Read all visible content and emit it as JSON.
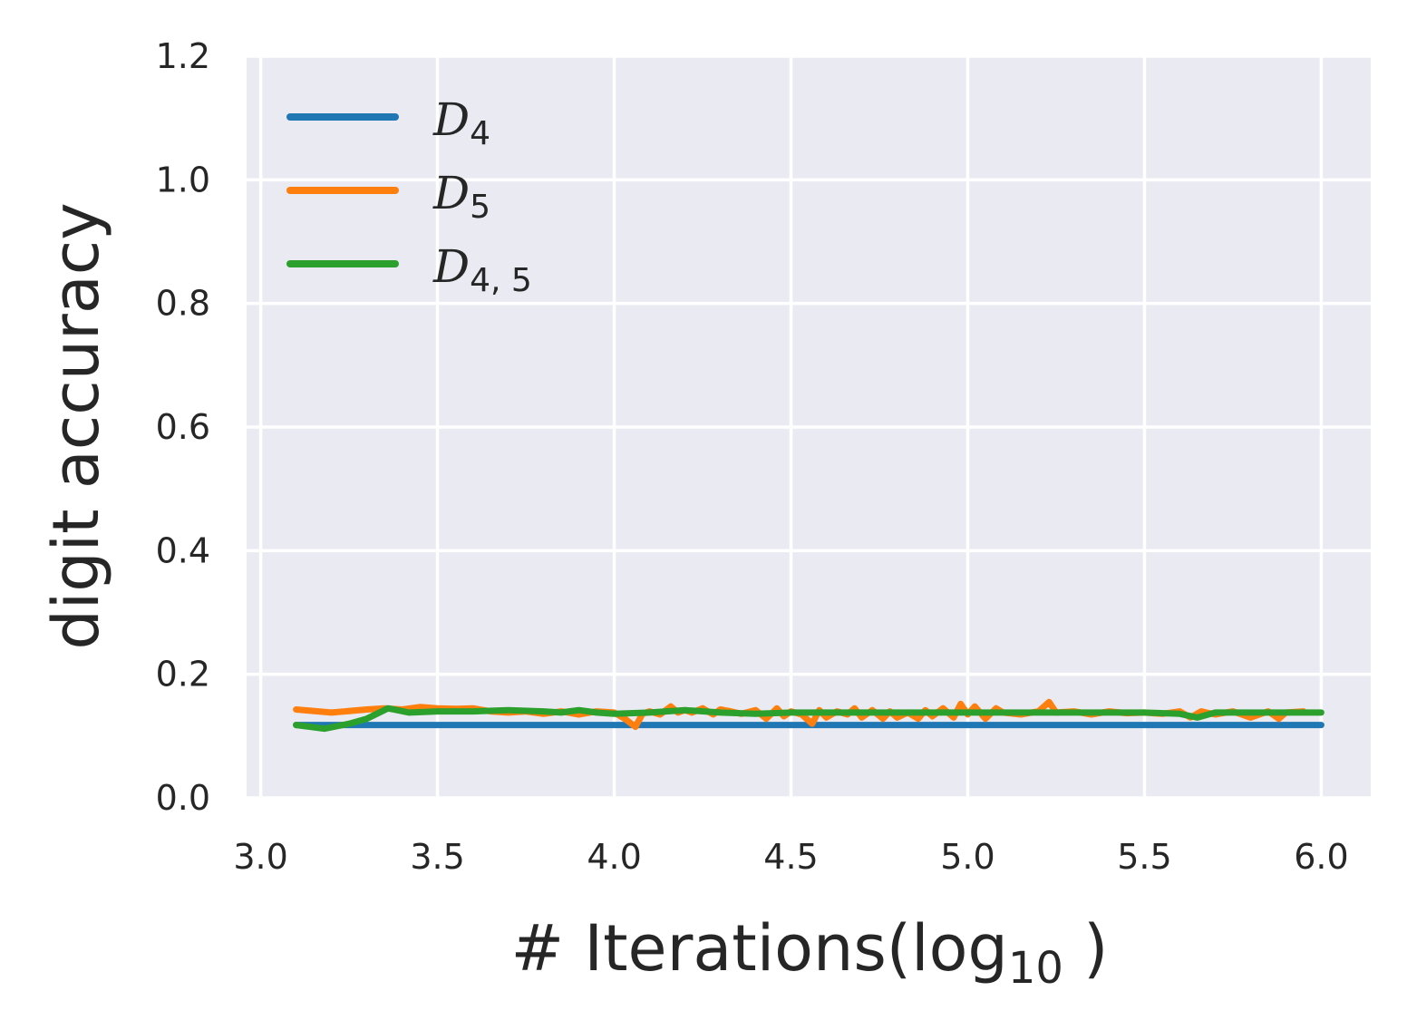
{
  "chart_data": {
    "type": "line",
    "xlabel": "# Iterations(log",
    "xlabel_sub": "10",
    "xlabel_close": " )",
    "ylabel": "digit accuracy",
    "xlim": [
      2.96,
      6.14
    ],
    "ylim": [
      0.0,
      1.2
    ],
    "xticks": [
      "3.0",
      "3.5",
      "4.0",
      "4.5",
      "5.0",
      "5.5",
      "6.0"
    ],
    "yticks": [
      "0.0",
      "0.2",
      "0.4",
      "0.6",
      "0.8",
      "1.0",
      "1.2"
    ],
    "grid": true,
    "legend_position": "top-left",
    "series": [
      {
        "name": "D",
        "name_sub": "4",
        "color": "#1f77b4",
        "x": [
          3.1,
          3.2,
          3.3,
          3.5,
          3.8,
          4.0,
          4.5,
          5.0,
          5.5,
          6.0
        ],
        "y": [
          0.118,
          0.118,
          0.118,
          0.118,
          0.118,
          0.118,
          0.118,
          0.118,
          0.118,
          0.118
        ]
      },
      {
        "name": "D",
        "name_sub": "5",
        "color": "#ff7f0e",
        "x": [
          3.1,
          3.2,
          3.3,
          3.35,
          3.4,
          3.45,
          3.5,
          3.55,
          3.6,
          3.65,
          3.7,
          3.75,
          3.8,
          3.85,
          3.9,
          3.95,
          4.0,
          4.03,
          4.06,
          4.08,
          4.1,
          4.13,
          4.16,
          4.18,
          4.2,
          4.22,
          4.25,
          4.28,
          4.3,
          4.33,
          4.36,
          4.4,
          4.43,
          4.46,
          4.48,
          4.5,
          4.53,
          4.56,
          4.58,
          4.6,
          4.63,
          4.66,
          4.68,
          4.7,
          4.73,
          4.76,
          4.78,
          4.8,
          4.83,
          4.86,
          4.88,
          4.9,
          4.93,
          4.96,
          4.98,
          5.0,
          5.02,
          5.05,
          5.08,
          5.1,
          5.15,
          5.2,
          5.23,
          5.25,
          5.3,
          5.35,
          5.4,
          5.45,
          5.5,
          5.55,
          5.6,
          5.63,
          5.66,
          5.7,
          5.75,
          5.8,
          5.85,
          5.88,
          5.9,
          5.95
        ],
        "y": [
          0.143,
          0.138,
          0.143,
          0.145,
          0.143,
          0.147,
          0.145,
          0.144,
          0.145,
          0.14,
          0.138,
          0.14,
          0.136,
          0.14,
          0.135,
          0.14,
          0.138,
          0.128,
          0.115,
          0.136,
          0.14,
          0.135,
          0.148,
          0.138,
          0.142,
          0.138,
          0.145,
          0.135,
          0.143,
          0.14,
          0.136,
          0.142,
          0.128,
          0.145,
          0.132,
          0.14,
          0.135,
          0.12,
          0.142,
          0.13,
          0.14,
          0.135,
          0.145,
          0.13,
          0.142,
          0.128,
          0.14,
          0.13,
          0.138,
          0.128,
          0.142,
          0.132,
          0.145,
          0.13,
          0.152,
          0.135,
          0.148,
          0.128,
          0.145,
          0.138,
          0.135,
          0.14,
          0.155,
          0.138,
          0.14,
          0.135,
          0.14,
          0.137,
          0.138,
          0.136,
          0.14,
          0.13,
          0.14,
          0.135,
          0.14,
          0.13,
          0.14,
          0.128,
          0.138,
          0.14
        ]
      },
      {
        "name": "D",
        "name_sub": "4, 5",
        "color": "#2ca02c",
        "x": [
          3.1,
          3.18,
          3.25,
          3.3,
          3.36,
          3.42,
          3.5,
          3.6,
          3.7,
          3.8,
          3.85,
          3.9,
          3.95,
          4.0,
          4.1,
          4.2,
          4.3,
          4.4,
          4.5,
          4.6,
          5.0,
          5.3,
          5.5,
          5.6,
          5.65,
          5.7,
          6.0
        ],
        "y": [
          0.118,
          0.112,
          0.12,
          0.128,
          0.145,
          0.138,
          0.14,
          0.14,
          0.142,
          0.14,
          0.138,
          0.142,
          0.138,
          0.136,
          0.138,
          0.142,
          0.138,
          0.136,
          0.138,
          0.138,
          0.138,
          0.138,
          0.138,
          0.136,
          0.13,
          0.138,
          0.138
        ]
      }
    ]
  }
}
